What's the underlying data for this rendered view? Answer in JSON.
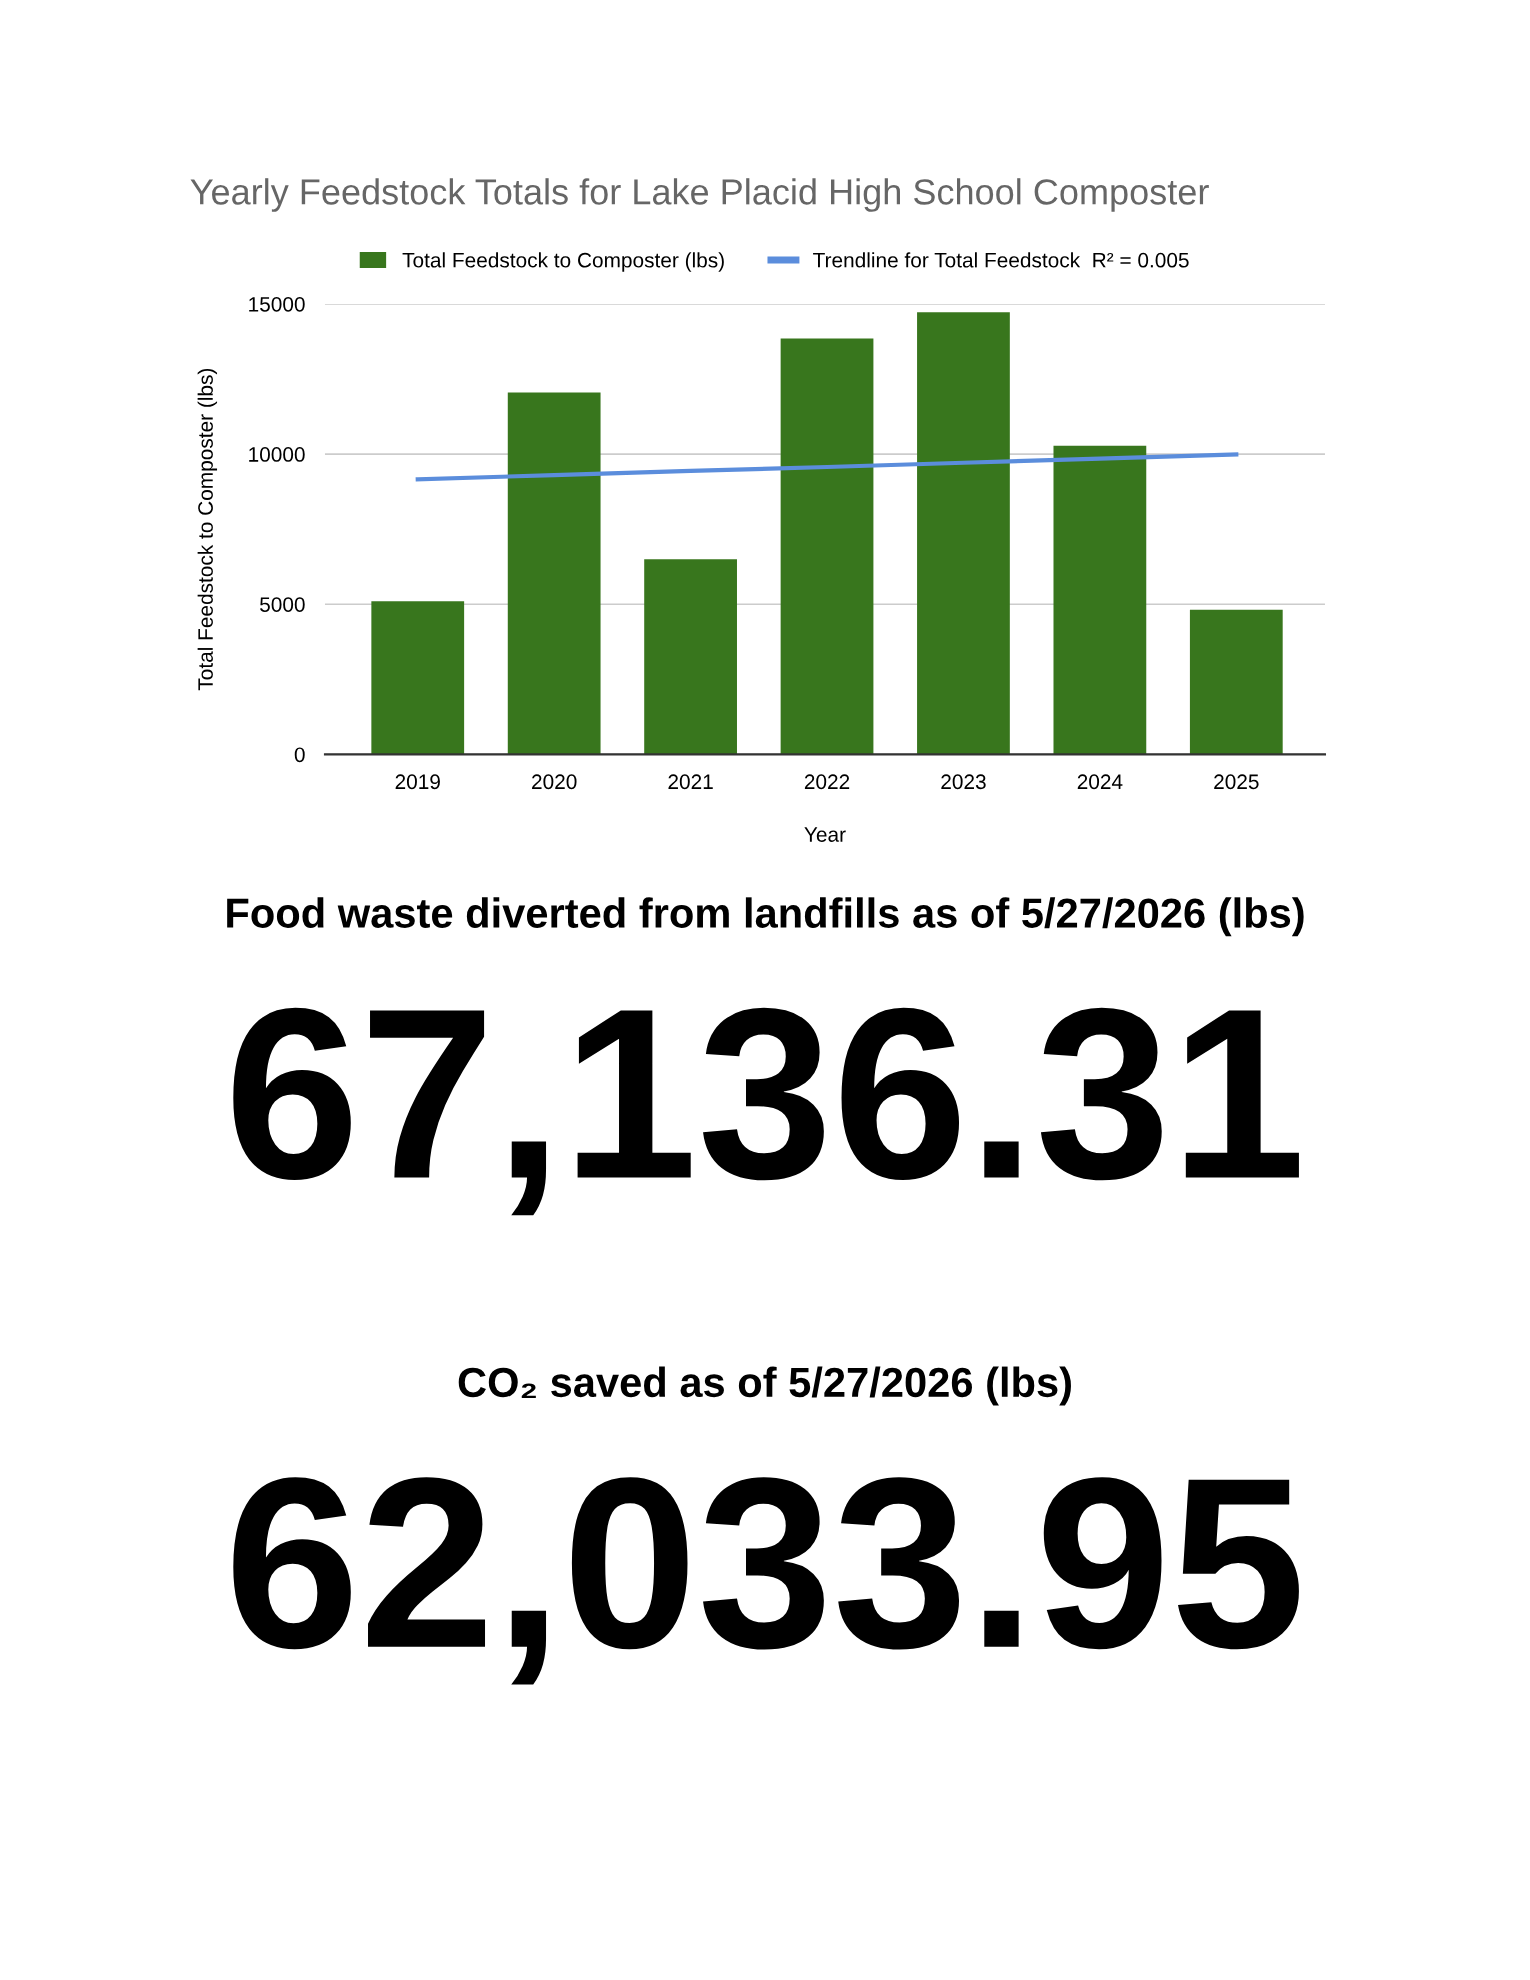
{
  "chart_data": {
    "type": "bar",
    "title": "Yearly Feedstock Totals for Lake Placid High School Composter",
    "xlabel": "Year",
    "ylabel": "Total Feedstock to Composter (lbs)",
    "categories": [
      "2019",
      "2020",
      "2021",
      "2022",
      "2023",
      "2024",
      "2025"
    ],
    "series": [
      {
        "name": "Total Feedstock to Composter (lbs)",
        "color": "#38761d",
        "values": [
          5100,
          12050,
          6500,
          13850,
          14720,
          10280,
          4820
        ]
      },
      {
        "name": "Trendline for Total Feedstock  R² = 0.005",
        "type": "line",
        "color": "#5b8ddc",
        "values": [
          9160,
          9300,
          9440,
          9570,
          9710,
          9850,
          9990
        ]
      }
    ],
    "ylim": [
      0,
      15000
    ],
    "yticks": [
      0,
      5000,
      10000,
      15000
    ],
    "grid": "y",
    "legend": "top",
    "annotations": [
      "Food waste diverted from landfills as of 5/27/2026 (lbs)",
      "67,136.31",
      "CO₂ saved as of 5/27/2026 (lbs)",
      "62,033.95"
    ]
  }
}
